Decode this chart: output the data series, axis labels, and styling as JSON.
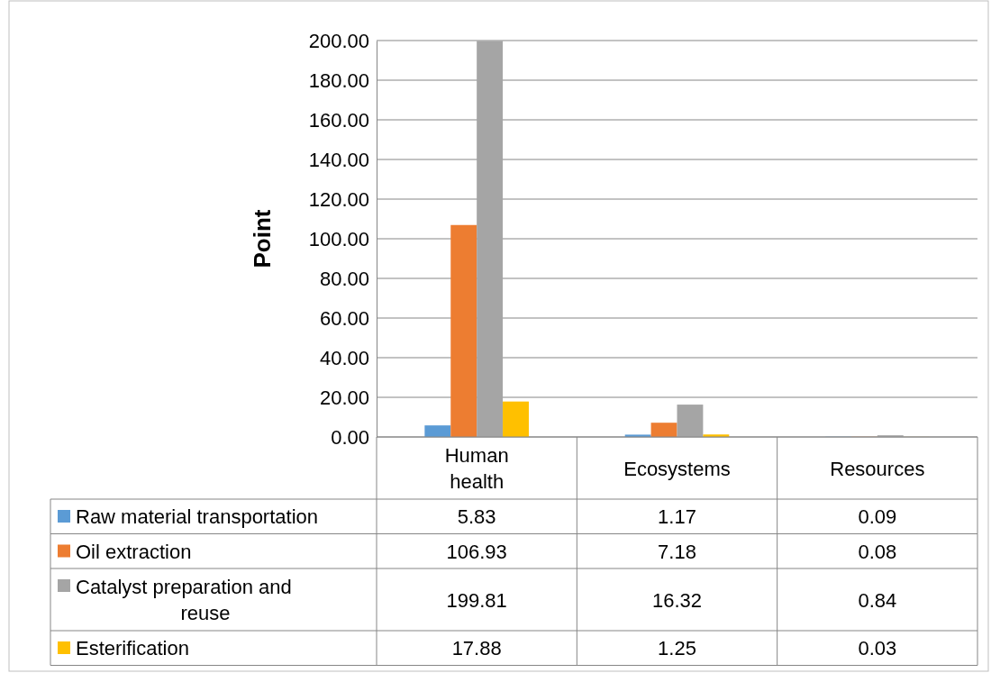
{
  "chart_data": {
    "type": "bar",
    "ylabel": "Point",
    "categories": [
      "Human health",
      "Ecosystems",
      "Resources"
    ],
    "series": [
      {
        "name": "Raw material transportation",
        "color": "#5b9bd5",
        "values": [
          5.83,
          1.17,
          0.09
        ]
      },
      {
        "name": "Oil extraction",
        "color": "#ed7d31",
        "values": [
          106.93,
          7.18,
          0.08
        ]
      },
      {
        "name": "Catalyst preparation and reuse",
        "color": "#a5a5a5",
        "values": [
          199.81,
          16.32,
          0.84
        ]
      },
      {
        "name": "Esterification",
        "color": "#ffc000",
        "values": [
          17.88,
          1.25,
          0.03
        ]
      }
    ],
    "ylim": [
      0,
      200
    ],
    "yticks": [
      {
        "value": 0,
        "label": "0.00"
      },
      {
        "value": 20,
        "label": "20.00"
      },
      {
        "value": 40,
        "label": "40.00"
      },
      {
        "value": 60,
        "label": "60.00"
      },
      {
        "value": 80,
        "label": "80.00"
      },
      {
        "value": 100,
        "label": "100.00"
      },
      {
        "value": 120,
        "label": "120.00"
      },
      {
        "value": 140,
        "label": "140.00"
      },
      {
        "value": 160,
        "label": "160.00"
      },
      {
        "value": 180,
        "label": "180.00"
      },
      {
        "value": 200,
        "label": "200.00"
      }
    ],
    "grid": "y",
    "legend": "bottom",
    "data_labels": true
  }
}
